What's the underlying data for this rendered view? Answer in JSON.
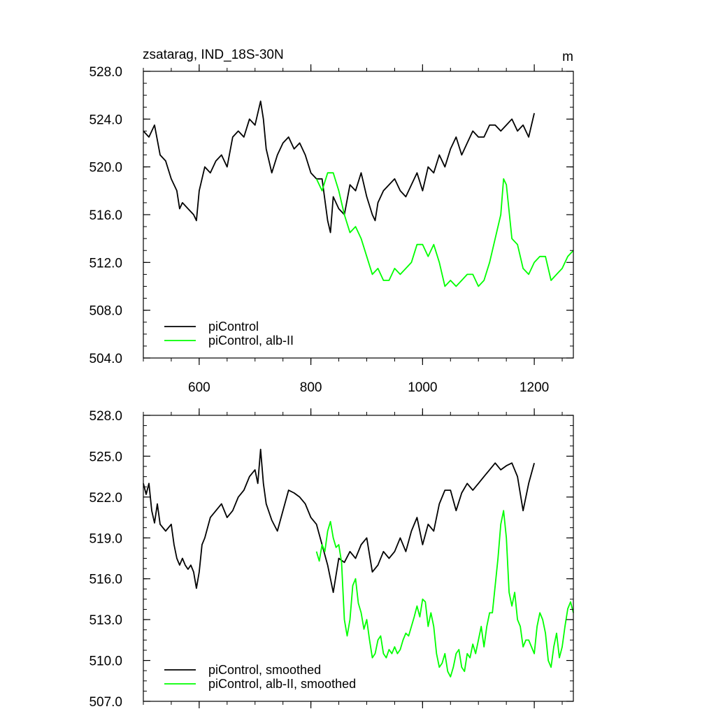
{
  "figure": {
    "title_left": "zsatarag, IND_18S-30N",
    "title_right": "m"
  },
  "colors": {
    "control": "#000000",
    "alb": "#00ff00",
    "axis": "#000000",
    "background": "#ffffff"
  },
  "chart_data": [
    {
      "type": "line",
      "title": "",
      "xlabel": "",
      "ylabel": "",
      "xlim": [
        500,
        1270
      ],
      "ylim": [
        504,
        528
      ],
      "xticks": [
        600,
        800,
        1000,
        1200
      ],
      "xtick_labels": [
        "600",
        "800",
        "1000",
        "1200"
      ],
      "yticks": [
        504,
        508,
        512,
        516,
        520,
        524,
        528
      ],
      "ytick_labels": [
        "504.0",
        "508.0",
        "512.0",
        "516.0",
        "520.0",
        "524.0",
        "528.0"
      ],
      "legend_position": "bottom-left",
      "series": [
        {
          "name": "piControl",
          "color": "#000000",
          "x": [
            500,
            510,
            520,
            530,
            540,
            550,
            560,
            565,
            570,
            580,
            590,
            595,
            600,
            610,
            620,
            630,
            640,
            650,
            660,
            670,
            680,
            690,
            700,
            710,
            715,
            720,
            730,
            740,
            750,
            760,
            770,
            780,
            790,
            800,
            810,
            820,
            830,
            835,
            840,
            850,
            860,
            870,
            880,
            890,
            900,
            910,
            915,
            920,
            930,
            940,
            950,
            960,
            970,
            980,
            990,
            1000,
            1010,
            1020,
            1030,
            1040,
            1050,
            1060,
            1070,
            1080,
            1090,
            1100,
            1110,
            1120,
            1130,
            1140,
            1150,
            1160,
            1170,
            1180,
            1190,
            1200
          ],
          "y": [
            523,
            522.5,
            523.5,
            521,
            520.5,
            519,
            518,
            516.5,
            517,
            516.5,
            516,
            515.5,
            518,
            520,
            519.5,
            520.5,
            521,
            520,
            522.5,
            523,
            522.5,
            524,
            523.5,
            525.5,
            524,
            521.5,
            519.5,
            521,
            522,
            522.5,
            521.5,
            522,
            521,
            519.5,
            519,
            519,
            515.5,
            514.5,
            517.5,
            516.5,
            516,
            518.5,
            518,
            519.5,
            517.5,
            516,
            515.5,
            517,
            518,
            518.5,
            519,
            518,
            517.5,
            518.5,
            519.5,
            518,
            520,
            519.5,
            521,
            520,
            521.5,
            522.5,
            521,
            522,
            523,
            522.5,
            522.5,
            523.5,
            523.5,
            523,
            523.5,
            524,
            523,
            523.5,
            522.5,
            524.5
          ]
        },
        {
          "name": "piControl, alb-II",
          "color": "#00ff00",
          "x": [
            810,
            820,
            830,
            840,
            850,
            860,
            870,
            880,
            890,
            900,
            910,
            920,
            930,
            940,
            950,
            960,
            970,
            980,
            990,
            1000,
            1010,
            1020,
            1030,
            1040,
            1050,
            1060,
            1070,
            1080,
            1090,
            1100,
            1110,
            1120,
            1130,
            1140,
            1145,
            1150,
            1160,
            1170,
            1180,
            1190,
            1200,
            1210,
            1220,
            1230,
            1240,
            1250,
            1260,
            1270
          ],
          "y": [
            519,
            518,
            519.5,
            519.5,
            518,
            516,
            514.5,
            515,
            514,
            512.5,
            511,
            511.5,
            510.5,
            510.5,
            511.5,
            511,
            511.5,
            512,
            513.5,
            513.5,
            512.5,
            513.5,
            512,
            510,
            510.5,
            510,
            510.5,
            511,
            511,
            510,
            510.5,
            512,
            514,
            516,
            519,
            518.5,
            514,
            513.5,
            511.5,
            511,
            512,
            512.5,
            512.5,
            510.5,
            511,
            511.5,
            512.5,
            513
          ]
        }
      ]
    },
    {
      "type": "line",
      "title": "",
      "xlabel": "",
      "ylabel": "",
      "xlim": [
        500,
        1270
      ],
      "ylim": [
        507,
        528
      ],
      "xticks": [
        600,
        800,
        1000,
        1200
      ],
      "xtick_labels": [],
      "yticks": [
        507,
        510,
        513,
        516,
        519,
        522,
        525,
        528
      ],
      "ytick_labels": [
        "507.0",
        "510.0",
        "513.0",
        "516.0",
        "519.0",
        "522.0",
        "525.0",
        "528.0"
      ],
      "legend_position": "bottom-left",
      "series": [
        {
          "name": "piControl, smoothed",
          "color": "#000000",
          "x": [
            500,
            505,
            510,
            515,
            520,
            525,
            530,
            540,
            550,
            555,
            560,
            565,
            570,
            575,
            580,
            585,
            590,
            595,
            600,
            605,
            610,
            620,
            630,
            640,
            650,
            660,
            670,
            680,
            690,
            700,
            705,
            710,
            715,
            720,
            730,
            740,
            750,
            760,
            770,
            780,
            790,
            800,
            810,
            820,
            830,
            840,
            850,
            860,
            870,
            880,
            890,
            900,
            910,
            920,
            930,
            940,
            950,
            960,
            970,
            980,
            990,
            1000,
            1010,
            1020,
            1030,
            1040,
            1050,
            1060,
            1070,
            1080,
            1090,
            1100,
            1110,
            1120,
            1130,
            1140,
            1150,
            1160,
            1170,
            1180,
            1190,
            1200
          ],
          "y": [
            523,
            522.2,
            523,
            521,
            520.1,
            521.5,
            520,
            519.5,
            520,
            518.5,
            517.5,
            517,
            517.5,
            517,
            516.7,
            517,
            516.5,
            515.3,
            516.5,
            518.5,
            519,
            520.5,
            521,
            521.5,
            520.5,
            521,
            522,
            522.5,
            523.5,
            524,
            523,
            525.5,
            523,
            521.5,
            520.3,
            519.5,
            521,
            522.5,
            522.3,
            522,
            521.5,
            520.5,
            520,
            518.5,
            517,
            515,
            517.5,
            517.2,
            518,
            517.5,
            518.5,
            519,
            516.5,
            517,
            518,
            517.5,
            518,
            519,
            518,
            519.5,
            520.5,
            518.5,
            520,
            519.5,
            521.5,
            522.5,
            522.5,
            521,
            522.3,
            523,
            522.5,
            523,
            523.5,
            524,
            524.5,
            524,
            524.3,
            524.5,
            523.5,
            521,
            523,
            524.5
          ]
        },
        {
          "name": "piControl, alb-II, smoothed",
          "color": "#00ff00",
          "x": [
            810,
            815,
            820,
            825,
            830,
            835,
            840,
            845,
            850,
            855,
            860,
            865,
            870,
            875,
            880,
            885,
            890,
            895,
            900,
            905,
            910,
            915,
            920,
            925,
            930,
            935,
            940,
            945,
            950,
            955,
            960,
            965,
            970,
            975,
            980,
            985,
            990,
            995,
            1000,
            1005,
            1010,
            1015,
            1020,
            1025,
            1030,
            1035,
            1040,
            1045,
            1050,
            1055,
            1060,
            1065,
            1070,
            1075,
            1080,
            1085,
            1090,
            1095,
            1100,
            1105,
            1110,
            1115,
            1120,
            1125,
            1130,
            1135,
            1140,
            1145,
            1150,
            1155,
            1160,
            1165,
            1170,
            1175,
            1180,
            1185,
            1190,
            1195,
            1200,
            1205,
            1210,
            1215,
            1220,
            1225,
            1230,
            1235,
            1240,
            1245,
            1250,
            1255,
            1260,
            1265,
            1270
          ],
          "y": [
            518,
            517.3,
            518.5,
            518,
            519.5,
            520.2,
            519,
            518.3,
            518.5,
            517.2,
            513,
            511.8,
            513,
            515.5,
            516,
            514.2,
            513.5,
            512.3,
            513,
            511.5,
            510.2,
            510.5,
            511.5,
            511.8,
            510.5,
            510.2,
            510.8,
            510.5,
            511,
            510.5,
            510.8,
            511.5,
            512,
            511.8,
            512.5,
            513.2,
            514,
            513.2,
            514.5,
            514.3,
            512.5,
            513.5,
            512.5,
            510.5,
            509.5,
            509.8,
            510.5,
            509.2,
            508.8,
            509.5,
            510.5,
            510.8,
            509.5,
            509.2,
            510.5,
            510.2,
            511.2,
            510.5,
            511.5,
            512.5,
            511,
            512.5,
            513.5,
            513.5,
            515.5,
            517.5,
            520,
            521,
            519,
            515,
            514,
            515,
            513,
            512.5,
            511,
            511.5,
            511.5,
            511,
            510.5,
            512.5,
            513.5,
            513,
            512,
            510,
            509.5,
            511,
            512,
            510.2,
            511,
            512.5,
            513.8,
            514.3,
            513.5
          ]
        }
      ]
    }
  ]
}
